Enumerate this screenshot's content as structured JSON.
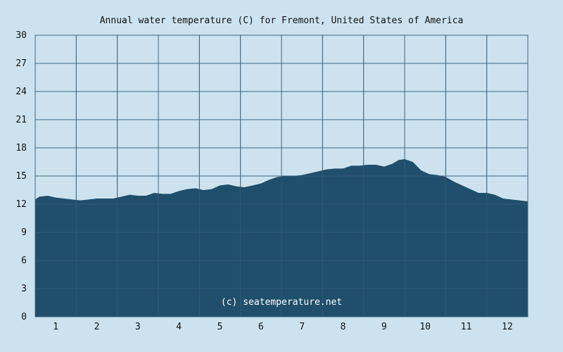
{
  "chart_data": {
    "type": "area",
    "title": "Annual water temperature (C) for Fremont, United States of America",
    "xlabel": "",
    "ylabel": "",
    "categories": [
      "1",
      "2",
      "3",
      "4",
      "5",
      "6",
      "7",
      "8",
      "9",
      "10",
      "11",
      "12"
    ],
    "ylim": [
      0,
      30
    ],
    "yticks": [
      0,
      3,
      6,
      9,
      12,
      15,
      18,
      21,
      24,
      27,
      30
    ],
    "grid": true,
    "legend": "none",
    "fill_color": "#1f4f6b",
    "grid_color": "#3e6580",
    "background_color": "#cce3ef",
    "watermark": "(c) seatemperature.net",
    "x": [
      0.5,
      0.6,
      0.8,
      1.0,
      1.2,
      1.4,
      1.6,
      1.8,
      2.0,
      2.2,
      2.4,
      2.6,
      2.8,
      3.0,
      3.2,
      3.4,
      3.6,
      3.8,
      4.0,
      4.2,
      4.4,
      4.6,
      4.8,
      5.0,
      5.2,
      5.4,
      5.6,
      5.8,
      6.0,
      6.2,
      6.4,
      6.6,
      6.8,
      7.0,
      7.2,
      7.4,
      7.6,
      7.8,
      8.0,
      8.2,
      8.4,
      8.6,
      8.8,
      9.0,
      9.2,
      9.35,
      9.5,
      9.7,
      9.9,
      10.1,
      10.3,
      10.5,
      10.7,
      10.9,
      11.1,
      11.3,
      11.5,
      11.7,
      11.9,
      12.1,
      12.3,
      12.5
    ],
    "values": [
      12.5,
      12.8,
      12.9,
      12.7,
      12.6,
      12.5,
      12.4,
      12.5,
      12.6,
      12.6,
      12.6,
      12.8,
      13.0,
      12.9,
      12.9,
      13.2,
      13.1,
      13.1,
      13.4,
      13.6,
      13.7,
      13.5,
      13.6,
      14.0,
      14.1,
      13.9,
      13.8,
      14.0,
      14.2,
      14.6,
      14.9,
      15.0,
      15.0,
      15.1,
      15.3,
      15.5,
      15.7,
      15.8,
      15.8,
      16.1,
      16.1,
      16.2,
      16.2,
      16.0,
      16.3,
      16.7,
      16.8,
      16.5,
      15.6,
      15.2,
      15.1,
      14.9,
      14.4,
      14.0,
      13.6,
      13.2,
      13.2,
      13.0,
      12.6,
      12.5,
      12.4,
      12.3
    ]
  }
}
